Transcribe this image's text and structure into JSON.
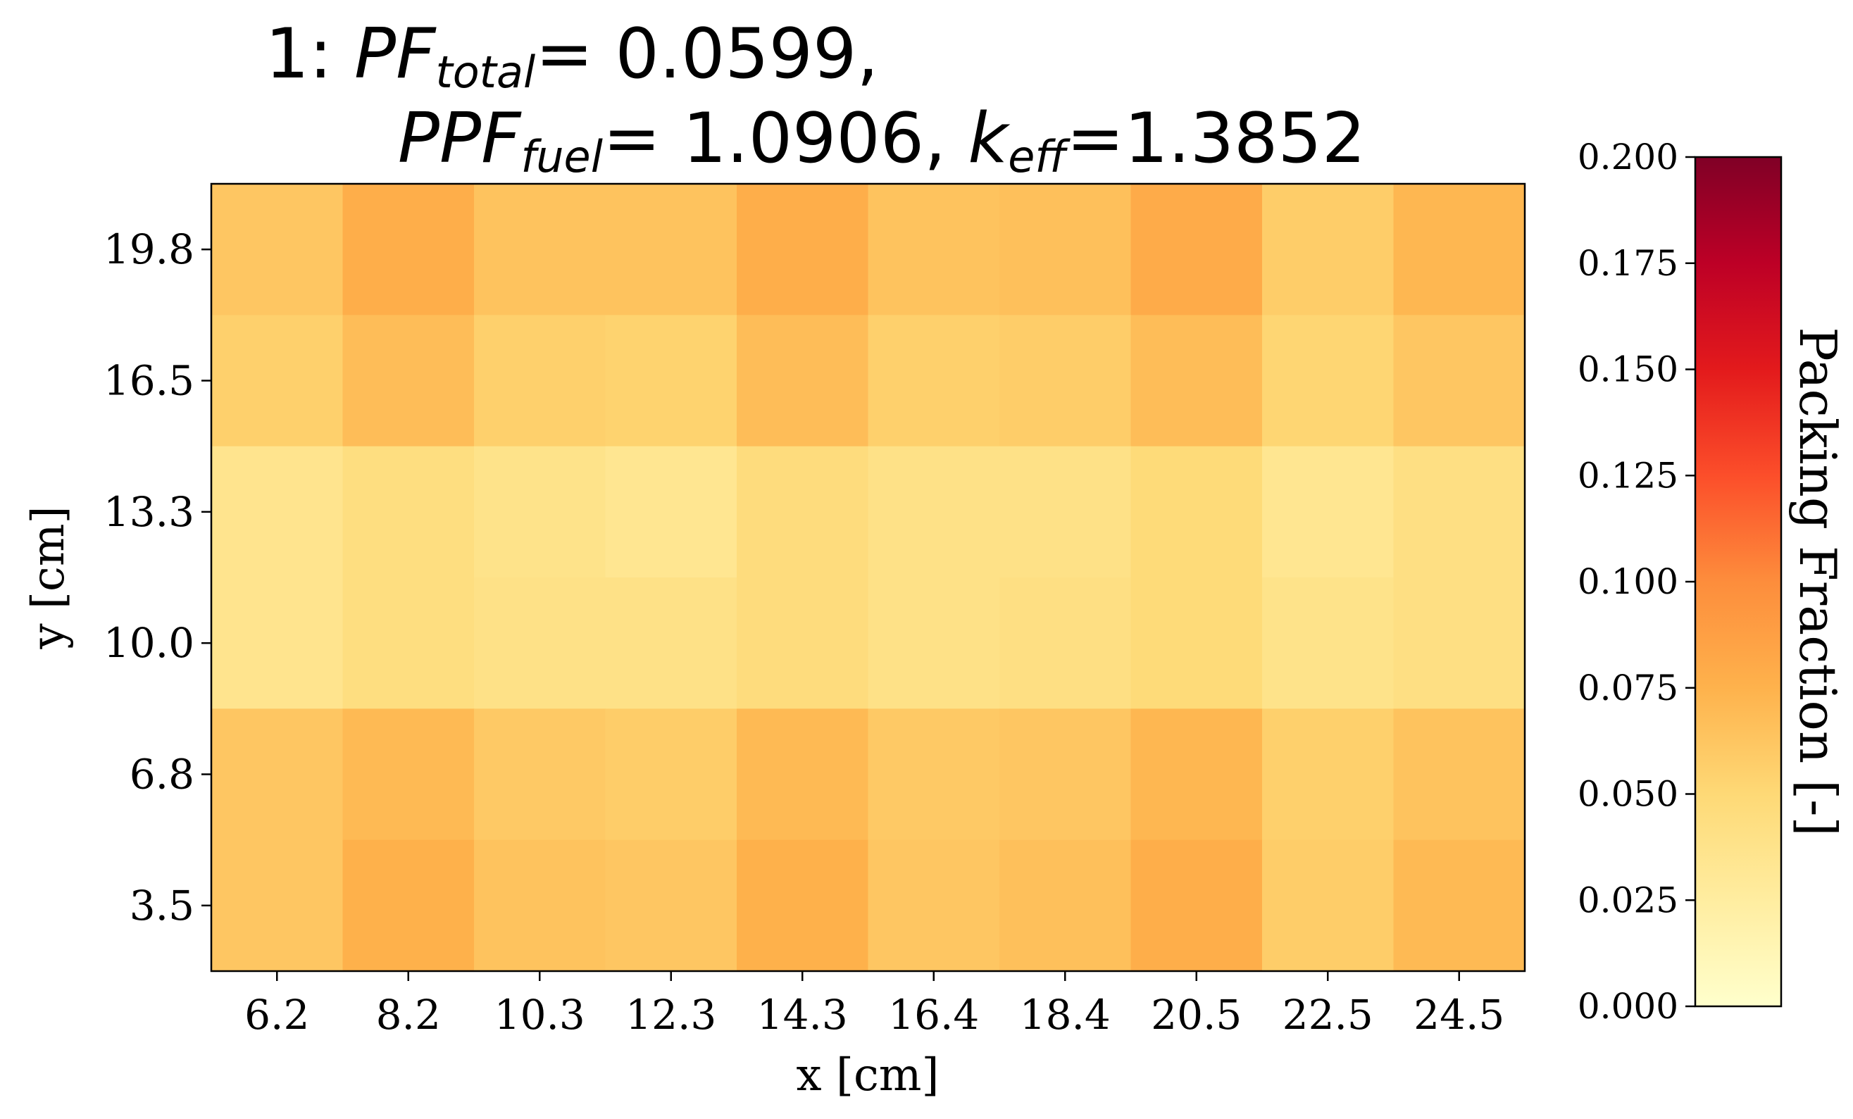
{
  "chart_data": {
    "type": "heatmap",
    "title": {
      "line1": {
        "prefix": "1: ",
        "pf_base": "PF",
        "pf_sub": "total",
        "pf_value": "= 0.0599,"
      },
      "line2": {
        "ppf_base": "PPF",
        "ppf_sub": "fuel",
        "ppf_value": "= 1.0906, ",
        "k_base": "k",
        "k_sub": "eff",
        "k_value": "=1.3852"
      }
    },
    "xlabel": "x [cm]",
    "ylabel": "y [cm]",
    "x_ticks": [
      "6.2",
      "8.2",
      "10.3",
      "12.3",
      "14.3",
      "16.4",
      "18.4",
      "20.5",
      "22.5",
      "24.5"
    ],
    "y_ticks": [
      "19.8",
      "16.5",
      "13.3",
      "10.0",
      "6.8",
      "3.5"
    ],
    "colorbar": {
      "label": "Packing Fraction [-]",
      "range": [
        0,
        0.2
      ],
      "ticks": [
        "0.000",
        "0.025",
        "0.050",
        "0.075",
        "0.100",
        "0.125",
        "0.150",
        "0.175",
        "0.200"
      ],
      "colormap": "YlOrRd",
      "stops": [
        "#ffffcc",
        "#ffeda0",
        "#fed976",
        "#feb24c",
        "#fd8d3c",
        "#fc4e2a",
        "#e31a1c",
        "#bd0026",
        "#800026"
      ]
    },
    "values": [
      [
        0.062,
        0.078,
        0.064,
        0.064,
        0.078,
        0.064,
        0.066,
        0.08,
        0.058,
        0.072
      ],
      [
        0.056,
        0.068,
        0.056,
        0.054,
        0.068,
        0.056,
        0.058,
        0.068,
        0.052,
        0.062
      ],
      [
        0.036,
        0.044,
        0.038,
        0.034,
        0.046,
        0.04,
        0.04,
        0.048,
        0.034,
        0.042
      ],
      [
        0.036,
        0.044,
        0.04,
        0.04,
        0.046,
        0.04,
        0.042,
        0.048,
        0.038,
        0.042
      ],
      [
        0.062,
        0.07,
        0.06,
        0.058,
        0.07,
        0.06,
        0.062,
        0.072,
        0.056,
        0.064
      ],
      [
        0.062,
        0.076,
        0.064,
        0.062,
        0.076,
        0.062,
        0.066,
        0.078,
        0.058,
        0.07
      ]
    ]
  }
}
